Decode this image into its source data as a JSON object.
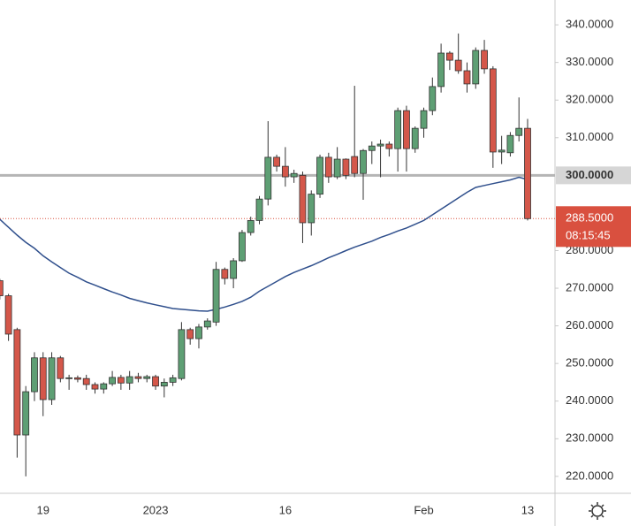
{
  "chart_data": {
    "type": "candlestick",
    "categories": [
      null,
      null,
      null,
      null,
      null,
      "19",
      null,
      null,
      null,
      null,
      null,
      null,
      null,
      null,
      null,
      null,
      null,
      null,
      "2023",
      null,
      null,
      null,
      null,
      null,
      null,
      null,
      null,
      null,
      null,
      null,
      null,
      null,
      null,
      "16",
      null,
      null,
      null,
      null,
      null,
      null,
      null,
      null,
      null,
      null,
      null,
      null,
      null,
      null,
      null,
      "Feb",
      null,
      null,
      null,
      null,
      null,
      null,
      null,
      null,
      null,
      null,
      null,
      "13"
    ],
    "open": [
      272,
      268,
      259,
      231,
      242.5,
      251.5,
      240.4,
      251.5,
      246,
      246.2,
      246,
      244.4,
      243.2,
      244.6,
      246.3,
      244.8,
      246.5,
      246,
      246.5,
      244,
      245,
      246,
      259,
      256.6,
      259.7,
      261,
      275,
      272.6,
      277.3,
      284.8,
      288,
      293.7,
      304.8,
      302.4,
      299.6,
      300,
      287.4,
      295,
      304.8,
      299.6,
      304.3,
      305,
      300.5,
      306.6,
      307.8,
      308.3,
      307.1,
      317.2,
      307.1,
      312.5,
      317.2,
      323.6,
      332.5,
      330.6,
      327.8,
      324.3,
      333.2,
      328.3,
      306.2,
      306,
      310.6,
      312.5
    ],
    "high": [
      272.5,
      268.5,
      259.5,
      244,
      253,
      253,
      253,
      252,
      247,
      246.8,
      247,
      245,
      245,
      248,
      247,
      248,
      247.5,
      247,
      247,
      246,
      247,
      261,
      259.5,
      260.5,
      262,
      277,
      275.5,
      278,
      285.5,
      289,
      294.5,
      314.4,
      305.5,
      307.5,
      301.5,
      301,
      296,
      305.5,
      306,
      307.5,
      304.5,
      323.8,
      307,
      309,
      309.5,
      309,
      318,
      318.5,
      313,
      318,
      326,
      335,
      333,
      337.7,
      330,
      334,
      336,
      329,
      310.5,
      311.5,
      320.7,
      315
    ],
    "low": [
      267,
      256,
      225,
      220,
      240,
      236,
      239,
      245,
      243,
      245,
      243,
      242,
      242,
      244,
      243,
      243,
      245,
      245,
      243,
      241,
      244,
      245.5,
      255,
      254,
      259,
      260,
      271,
      270,
      277,
      284,
      287,
      292,
      301,
      297,
      298,
      282,
      284,
      294,
      298,
      299,
      299,
      299.5,
      293.5,
      303,
      299.5,
      305,
      301,
      301,
      306,
      310,
      316,
      322,
      328,
      327,
      322,
      323,
      327,
      302,
      303,
      305,
      309,
      288
    ],
    "close": [
      268,
      257.8,
      231,
      242.5,
      251.5,
      240.4,
      251.5,
      246,
      246.2,
      245.8,
      244.4,
      243.2,
      244.6,
      246.3,
      244.8,
      246.5,
      246,
      246.5,
      244,
      245,
      246.2,
      259,
      256.6,
      259.7,
      261.3,
      275,
      272.6,
      277.3,
      284.8,
      288,
      293.7,
      304.8,
      302.4,
      299.6,
      300.5,
      287.4,
      295,
      304.8,
      299.6,
      304.3,
      300,
      300.5,
      306.6,
      307.8,
      308.3,
      307.1,
      317.2,
      307.1,
      312.5,
      317.2,
      323.6,
      332.5,
      330.6,
      327.8,
      324.3,
      333.2,
      328.3,
      306.2,
      306.7,
      310.6,
      312.5,
      288.5
    ],
    "up_color": "#5e9f74",
    "down_color": "#d4574a",
    "moving_average": {
      "color": "#2f4f8c",
      "values": [
        288.3,
        286.2,
        284.1,
        282.2,
        280.6,
        278.6,
        277,
        275.5,
        274,
        272.9,
        271.7,
        270.8,
        269.9,
        269,
        268.2,
        267.3,
        266.7,
        266.1,
        265.6,
        265.1,
        264.6,
        264.4,
        264.2,
        264,
        263.9,
        264.4,
        265,
        265.7,
        266.5,
        267.6,
        269.2,
        270.5,
        271.8,
        273.1,
        274.2,
        275.1,
        276,
        277,
        278.1,
        279,
        280,
        280.9,
        281.7,
        282.5,
        283.5,
        284.3,
        285.2,
        286,
        287,
        288,
        289.5,
        291,
        292.5,
        294,
        295.5,
        296.8,
        297.3,
        297.8,
        298.3,
        298.8,
        299.5,
        298.9
      ]
    },
    "ylim": [
      215.5,
      346.6
    ],
    "yticks": [
      {
        "value": 340,
        "label": "340.0000"
      },
      {
        "value": 330,
        "label": "330.0000"
      },
      {
        "value": 320,
        "label": "320.0000"
      },
      {
        "value": 310,
        "label": "310.0000"
      },
      {
        "value": 280,
        "label": "280.0000"
      },
      {
        "value": 270,
        "label": "270.0000"
      },
      {
        "value": 260,
        "label": "260.0000"
      },
      {
        "value": 250,
        "label": "250.0000"
      },
      {
        "value": 240,
        "label": "240.0000"
      },
      {
        "value": 230,
        "label": "230.0000"
      },
      {
        "value": 220,
        "label": "220.0000"
      }
    ],
    "price_line": {
      "value": 300,
      "label": "300.0000",
      "color": "#b5b5b5"
    },
    "last_price": {
      "value": 288.5,
      "label": "288.5000",
      "color": "#d9503f"
    },
    "countdown": "08:15:45"
  }
}
